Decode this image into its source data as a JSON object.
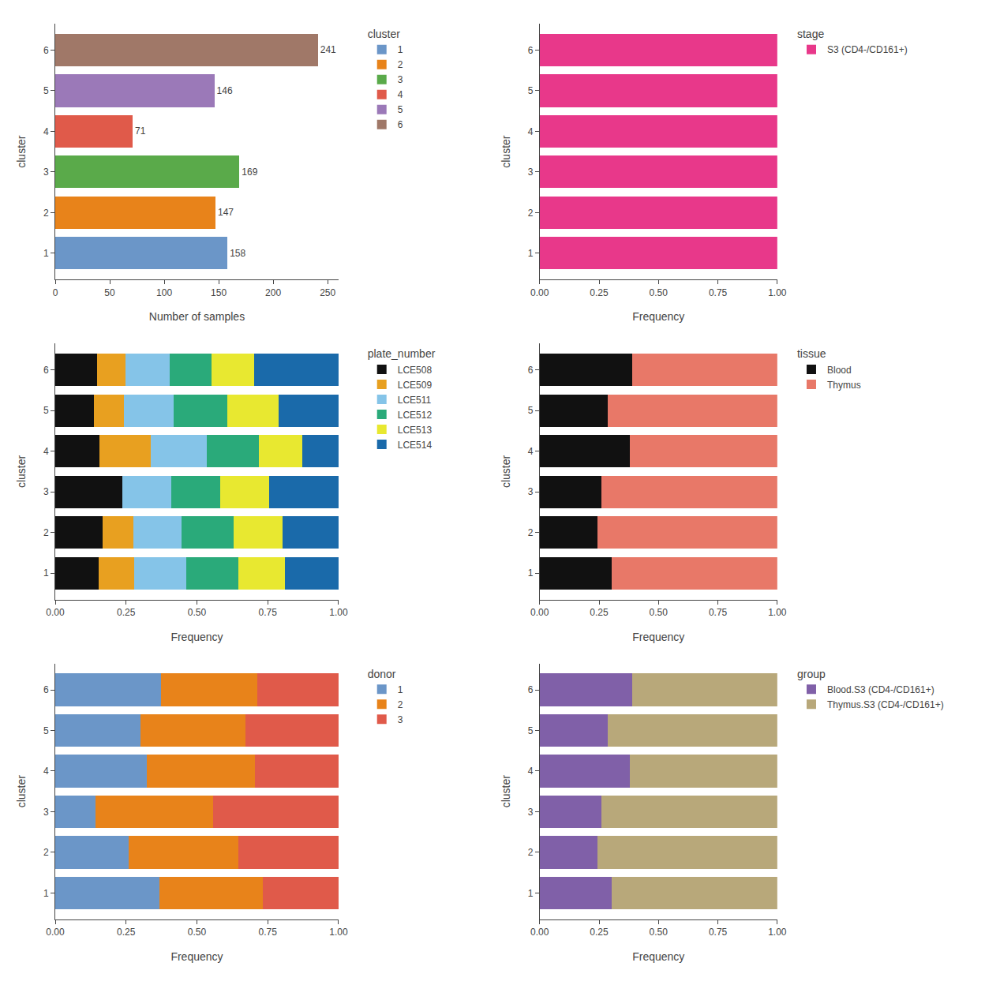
{
  "chart_data": [
    {
      "type": "bar",
      "orientation": "horizontal",
      "xlabel": "Number of samples",
      "ylabel": "cluster",
      "categories": [
        1,
        2,
        3,
        4,
        5,
        6
      ],
      "values": [
        158,
        147,
        169,
        71,
        146,
        241
      ],
      "colors": [
        "#6b96c8",
        "#e8831a",
        "#5aaa4a",
        "#e05a4a",
        "#9b79b8",
        "#a07868"
      ],
      "data_labels": true,
      "legend": "right",
      "legend_title": "cluster",
      "xlim": [
        0,
        260
      ],
      "xticks": [
        0,
        50,
        100,
        150,
        200,
        250
      ],
      "ylim": [
        0.35,
        6.65
      ],
      "yticks": [
        1,
        2,
        3,
        4,
        5,
        6
      ],
      "grid": false
    },
    {
      "type": "bar",
      "orientation": "horizontal",
      "stacked": true,
      "xlabel": "Frequency",
      "ylabel": "cluster",
      "categories": [
        1,
        2,
        3,
        4,
        5,
        6
      ],
      "series": [
        {
          "name": "S3 (CD4-/CD161+)",
          "color": "#e8388a",
          "values": [
            1.0,
            1.0,
            1.0,
            1.0,
            1.0,
            1.0
          ]
        }
      ],
      "legend": "right",
      "legend_title": "stage",
      "xlim": [
        0.0,
        1.0
      ],
      "xticks": [
        {
          "value": 0.0,
          "label": "0.00"
        },
        0.25,
        {
          "value": 0.5,
          "label": "0.50"
        },
        0.75,
        {
          "value": 1.0,
          "label": "1.00"
        }
      ],
      "ylim": [
        0.35,
        6.65
      ],
      "yticks": [
        1,
        2,
        3,
        4,
        5,
        6
      ],
      "grid": false
    },
    {
      "type": "bar",
      "orientation": "horizontal",
      "stacked": true,
      "xlabel": "Frequency",
      "ylabel": "cluster",
      "categories": [
        1,
        2,
        3,
        4,
        5,
        6
      ],
      "series": [
        {
          "name": "LCE508",
          "color": "#111111",
          "values": [
            0.152,
            0.168,
            0.237,
            0.155,
            0.137,
            0.149
          ]
        },
        {
          "name": "LCE509",
          "color": "#e8a020",
          "values": [
            0.127,
            0.107,
            0.0,
            0.183,
            0.106,
            0.099
          ]
        },
        {
          "name": "LCE511",
          "color": "#85c4e8",
          "values": [
            0.184,
            0.171,
            0.172,
            0.197,
            0.175,
            0.155
          ]
        },
        {
          "name": "LCE512",
          "color": "#2aaa7a",
          "values": [
            0.184,
            0.184,
            0.172,
            0.183,
            0.188,
            0.149
          ]
        },
        {
          "name": "LCE513",
          "color": "#e8e830",
          "values": [
            0.165,
            0.172,
            0.175,
            0.155,
            0.181,
            0.149
          ]
        },
        {
          "name": "LCE514",
          "color": "#1a6aaa",
          "values": [
            0.188,
            0.198,
            0.244,
            0.127,
            0.213,
            0.299
          ]
        }
      ],
      "legend": "right",
      "legend_title": "plate_number",
      "xlim": [
        0.0,
        1.0
      ],
      "xticks": [
        {
          "value": 0.0,
          "label": "0.00"
        },
        0.25,
        {
          "value": 0.5,
          "label": "0.50"
        },
        0.75,
        {
          "value": 1.0,
          "label": "1.00"
        }
      ],
      "ylim": [
        0.35,
        6.65
      ],
      "yticks": [
        1,
        2,
        3,
        4,
        5,
        6
      ],
      "grid": false
    },
    {
      "type": "bar",
      "orientation": "horizontal",
      "stacked": true,
      "xlabel": "Frequency",
      "ylabel": "cluster",
      "categories": [
        1,
        2,
        3,
        4,
        5,
        6
      ],
      "series": [
        {
          "name": "Blood",
          "color": "#111111",
          "values": [
            0.304,
            0.244,
            0.26,
            0.38,
            0.288,
            0.389
          ]
        },
        {
          "name": "Thymus",
          "color": "#e87868",
          "values": [
            0.696,
            0.756,
            0.74,
            0.62,
            0.712,
            0.611
          ]
        }
      ],
      "legend": "right",
      "legend_title": "tissue",
      "xlim": [
        0.0,
        1.0
      ],
      "xticks": [
        {
          "value": 0.0,
          "label": "0.00"
        },
        0.25,
        {
          "value": 0.5,
          "label": "0.50"
        },
        0.75,
        {
          "value": 1.0,
          "label": "1.00"
        }
      ],
      "ylim": [
        0.35,
        6.65
      ],
      "yticks": [
        1,
        2,
        3,
        4,
        5,
        6
      ],
      "grid": false
    },
    {
      "type": "bar",
      "orientation": "horizontal",
      "stacked": true,
      "xlabel": "Frequency",
      "ylabel": "cluster",
      "categories": [
        1,
        2,
        3,
        4,
        5,
        6
      ],
      "series": [
        {
          "name": "1",
          "color": "#6b96c8",
          "values": [
            0.367,
            0.259,
            0.142,
            0.324,
            0.301,
            0.373
          ]
        },
        {
          "name": "2",
          "color": "#e8831a",
          "values": [
            0.367,
            0.388,
            0.414,
            0.38,
            0.37,
            0.34
          ]
        },
        {
          "name": "3",
          "color": "#e05a4a",
          "values": [
            0.266,
            0.353,
            0.444,
            0.296,
            0.329,
            0.287
          ]
        }
      ],
      "legend": "right",
      "legend_title": "donor",
      "xlim": [
        0.0,
        1.0
      ],
      "xticks": [
        {
          "value": 0.0,
          "label": "0.00"
        },
        0.25,
        {
          "value": 0.5,
          "label": "0.50"
        },
        0.75,
        {
          "value": 1.0,
          "label": "1.00"
        }
      ],
      "ylim": [
        0.35,
        6.65
      ],
      "yticks": [
        1,
        2,
        3,
        4,
        5,
        6
      ],
      "grid": false
    },
    {
      "type": "bar",
      "orientation": "horizontal",
      "stacked": true,
      "xlabel": "Frequency",
      "ylabel": "cluster",
      "categories": [
        1,
        2,
        3,
        4,
        5,
        6
      ],
      "series": [
        {
          "name": "Blood.S3 (CD4-/CD161+)",
          "color": "#8060a8",
          "values": [
            0.304,
            0.244,
            0.26,
            0.38,
            0.288,
            0.389
          ]
        },
        {
          "name": "Thymus.S3 (CD4-/CD161+)",
          "color": "#b8a87a",
          "values": [
            0.696,
            0.756,
            0.74,
            0.62,
            0.712,
            0.611
          ]
        }
      ],
      "legend": "right",
      "legend_title": "group",
      "xlim": [
        0.0,
        1.0
      ],
      "xticks": [
        {
          "value": 0.0,
          "label": "0.00"
        },
        0.25,
        {
          "value": 0.5,
          "label": "0.50"
        },
        0.75,
        {
          "value": 1.0,
          "label": "1.00"
        }
      ],
      "ylim": [
        0.35,
        6.65
      ],
      "yticks": [
        1,
        2,
        3,
        4,
        5,
        6
      ],
      "grid": false
    }
  ]
}
